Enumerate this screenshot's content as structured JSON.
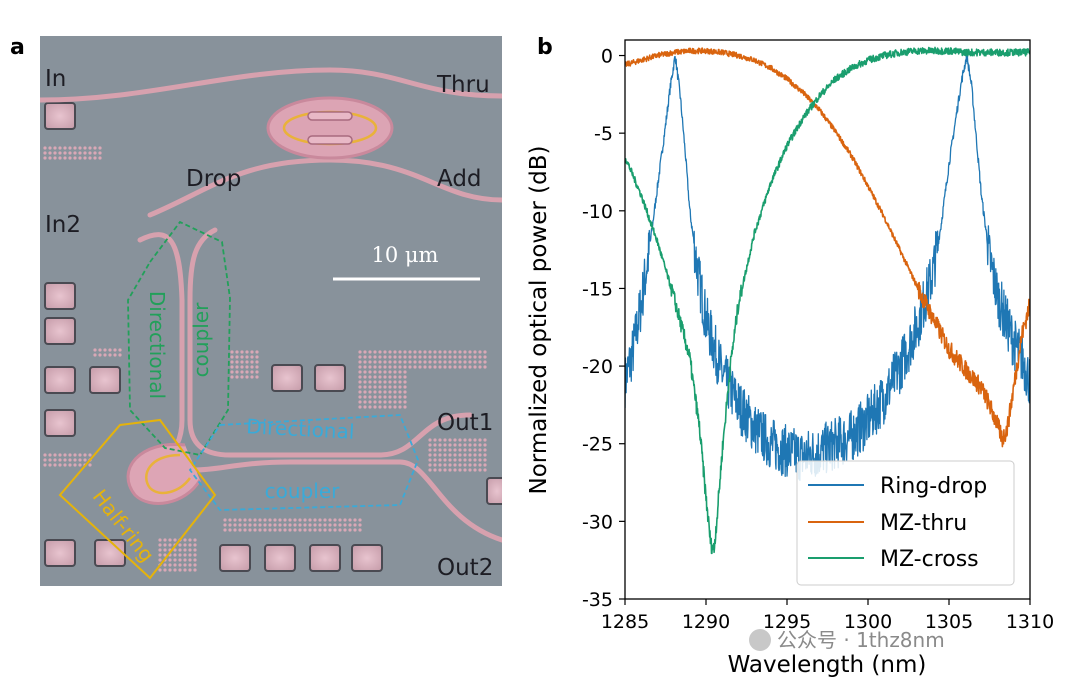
{
  "panel_a": {
    "letter": "a",
    "labels": {
      "in": "In",
      "thru": "Thru",
      "drop": "Drop",
      "add": "Add",
      "in2": "In2",
      "out1": "Out1",
      "out2": "Out2"
    },
    "scale_bar": "10 μm",
    "annotations": {
      "dc_green_1": "Directional",
      "dc_green_2": "coupler",
      "dc_blue_1": "Directional",
      "dc_blue_2": "coupler",
      "half_ring": "Half-ring"
    },
    "colors": {
      "green": "#22a05a",
      "blue": "#3aaad8",
      "yellow": "#e5b30b",
      "substrate": "#8c939b"
    }
  },
  "panel_b": {
    "letter": "b"
  },
  "chart_data": {
    "type": "line",
    "title": "",
    "xlabel": "Wavelength (nm)",
    "ylabel": "Normalized optical power (dB)",
    "xlim": [
      1285,
      1310
    ],
    "ylim": [
      -35,
      1
    ],
    "xticks": [
      1285,
      1290,
      1295,
      1300,
      1305,
      1310
    ],
    "yticks": [
      0,
      -5,
      -10,
      -15,
      -20,
      -25,
      -30,
      -35
    ],
    "legend_position": "lower-right",
    "series": [
      {
        "name": "Ring-drop",
        "color": "#1f77b4",
        "x": [
          1285,
          1285.5,
          1286,
          1286.5,
          1287,
          1287.5,
          1287.8,
          1288.1,
          1288.4,
          1288.7,
          1289,
          1289.5,
          1290,
          1291,
          1292,
          1293,
          1294,
          1295,
          1296,
          1297,
          1298,
          1299,
          1300,
          1301,
          1302,
          1303,
          1304,
          1304.5,
          1305,
          1305.5,
          1305.8,
          1306.1,
          1306.4,
          1306.7,
          1307,
          1307.5,
          1308,
          1308.5,
          1309,
          1309.5,
          1310
        ],
        "y": [
          -21,
          -19,
          -16,
          -12.5,
          -8.5,
          -4.5,
          -2,
          0,
          -2.5,
          -6,
          -10,
          -14,
          -17,
          -20.5,
          -22.5,
          -24,
          -25,
          -25.5,
          -25.8,
          -25.5,
          -25,
          -24.5,
          -23.5,
          -22,
          -20,
          -17.5,
          -14,
          -11,
          -7,
          -3.5,
          -1.5,
          0,
          -2,
          -5.5,
          -9,
          -13,
          -15.5,
          -17,
          -18.5,
          -19.5,
          -21
        ]
      },
      {
        "name": "MZ-thru",
        "color": "#d9640f",
        "x": [
          1285,
          1286,
          1287,
          1288,
          1289,
          1290,
          1291,
          1292,
          1293,
          1294,
          1295,
          1296,
          1297,
          1298,
          1299,
          1300,
          1301,
          1302,
          1303,
          1304,
          1305,
          1306,
          1307,
          1307.5,
          1308,
          1308.3,
          1308.6,
          1308.9,
          1309.2,
          1309.5,
          1310
        ],
        "y": [
          -0.6,
          -0.3,
          0,
          0.2,
          0.3,
          0.3,
          0.2,
          0,
          -0.3,
          -0.8,
          -1.5,
          -2.4,
          -3.5,
          -4.9,
          -6.5,
          -8.4,
          -10.4,
          -12.6,
          -14.8,
          -16.9,
          -18.9,
          -20.2,
          -21.4,
          -22.5,
          -23.8,
          -24.7,
          -24,
          -22,
          -20,
          -18,
          -16
        ]
      },
      {
        "name": "MZ-cross",
        "color": "#1a9e6e",
        "x": [
          1285,
          1286,
          1287,
          1288,
          1289,
          1289.6,
          1290,
          1290.3,
          1290.5,
          1290.7,
          1291,
          1291.5,
          1292,
          1293,
          1294,
          1295,
          1296,
          1297,
          1298,
          1299,
          1300,
          1301,
          1302,
          1303,
          1304,
          1305,
          1306,
          1307,
          1308,
          1309,
          1310
        ],
        "y": [
          -6.5,
          -9,
          -12,
          -15.5,
          -19.5,
          -24,
          -28.5,
          -31.5,
          -31.8,
          -29.5,
          -25.5,
          -20,
          -16,
          -11.4,
          -8.2,
          -5.8,
          -4,
          -2.6,
          -1.5,
          -0.8,
          -0.3,
          0,
          0.2,
          0.3,
          0.3,
          0.3,
          0.2,
          0.2,
          0.2,
          0.2,
          0.2
        ]
      }
    ]
  },
  "watermark": "公众号 · 1thz8nm"
}
